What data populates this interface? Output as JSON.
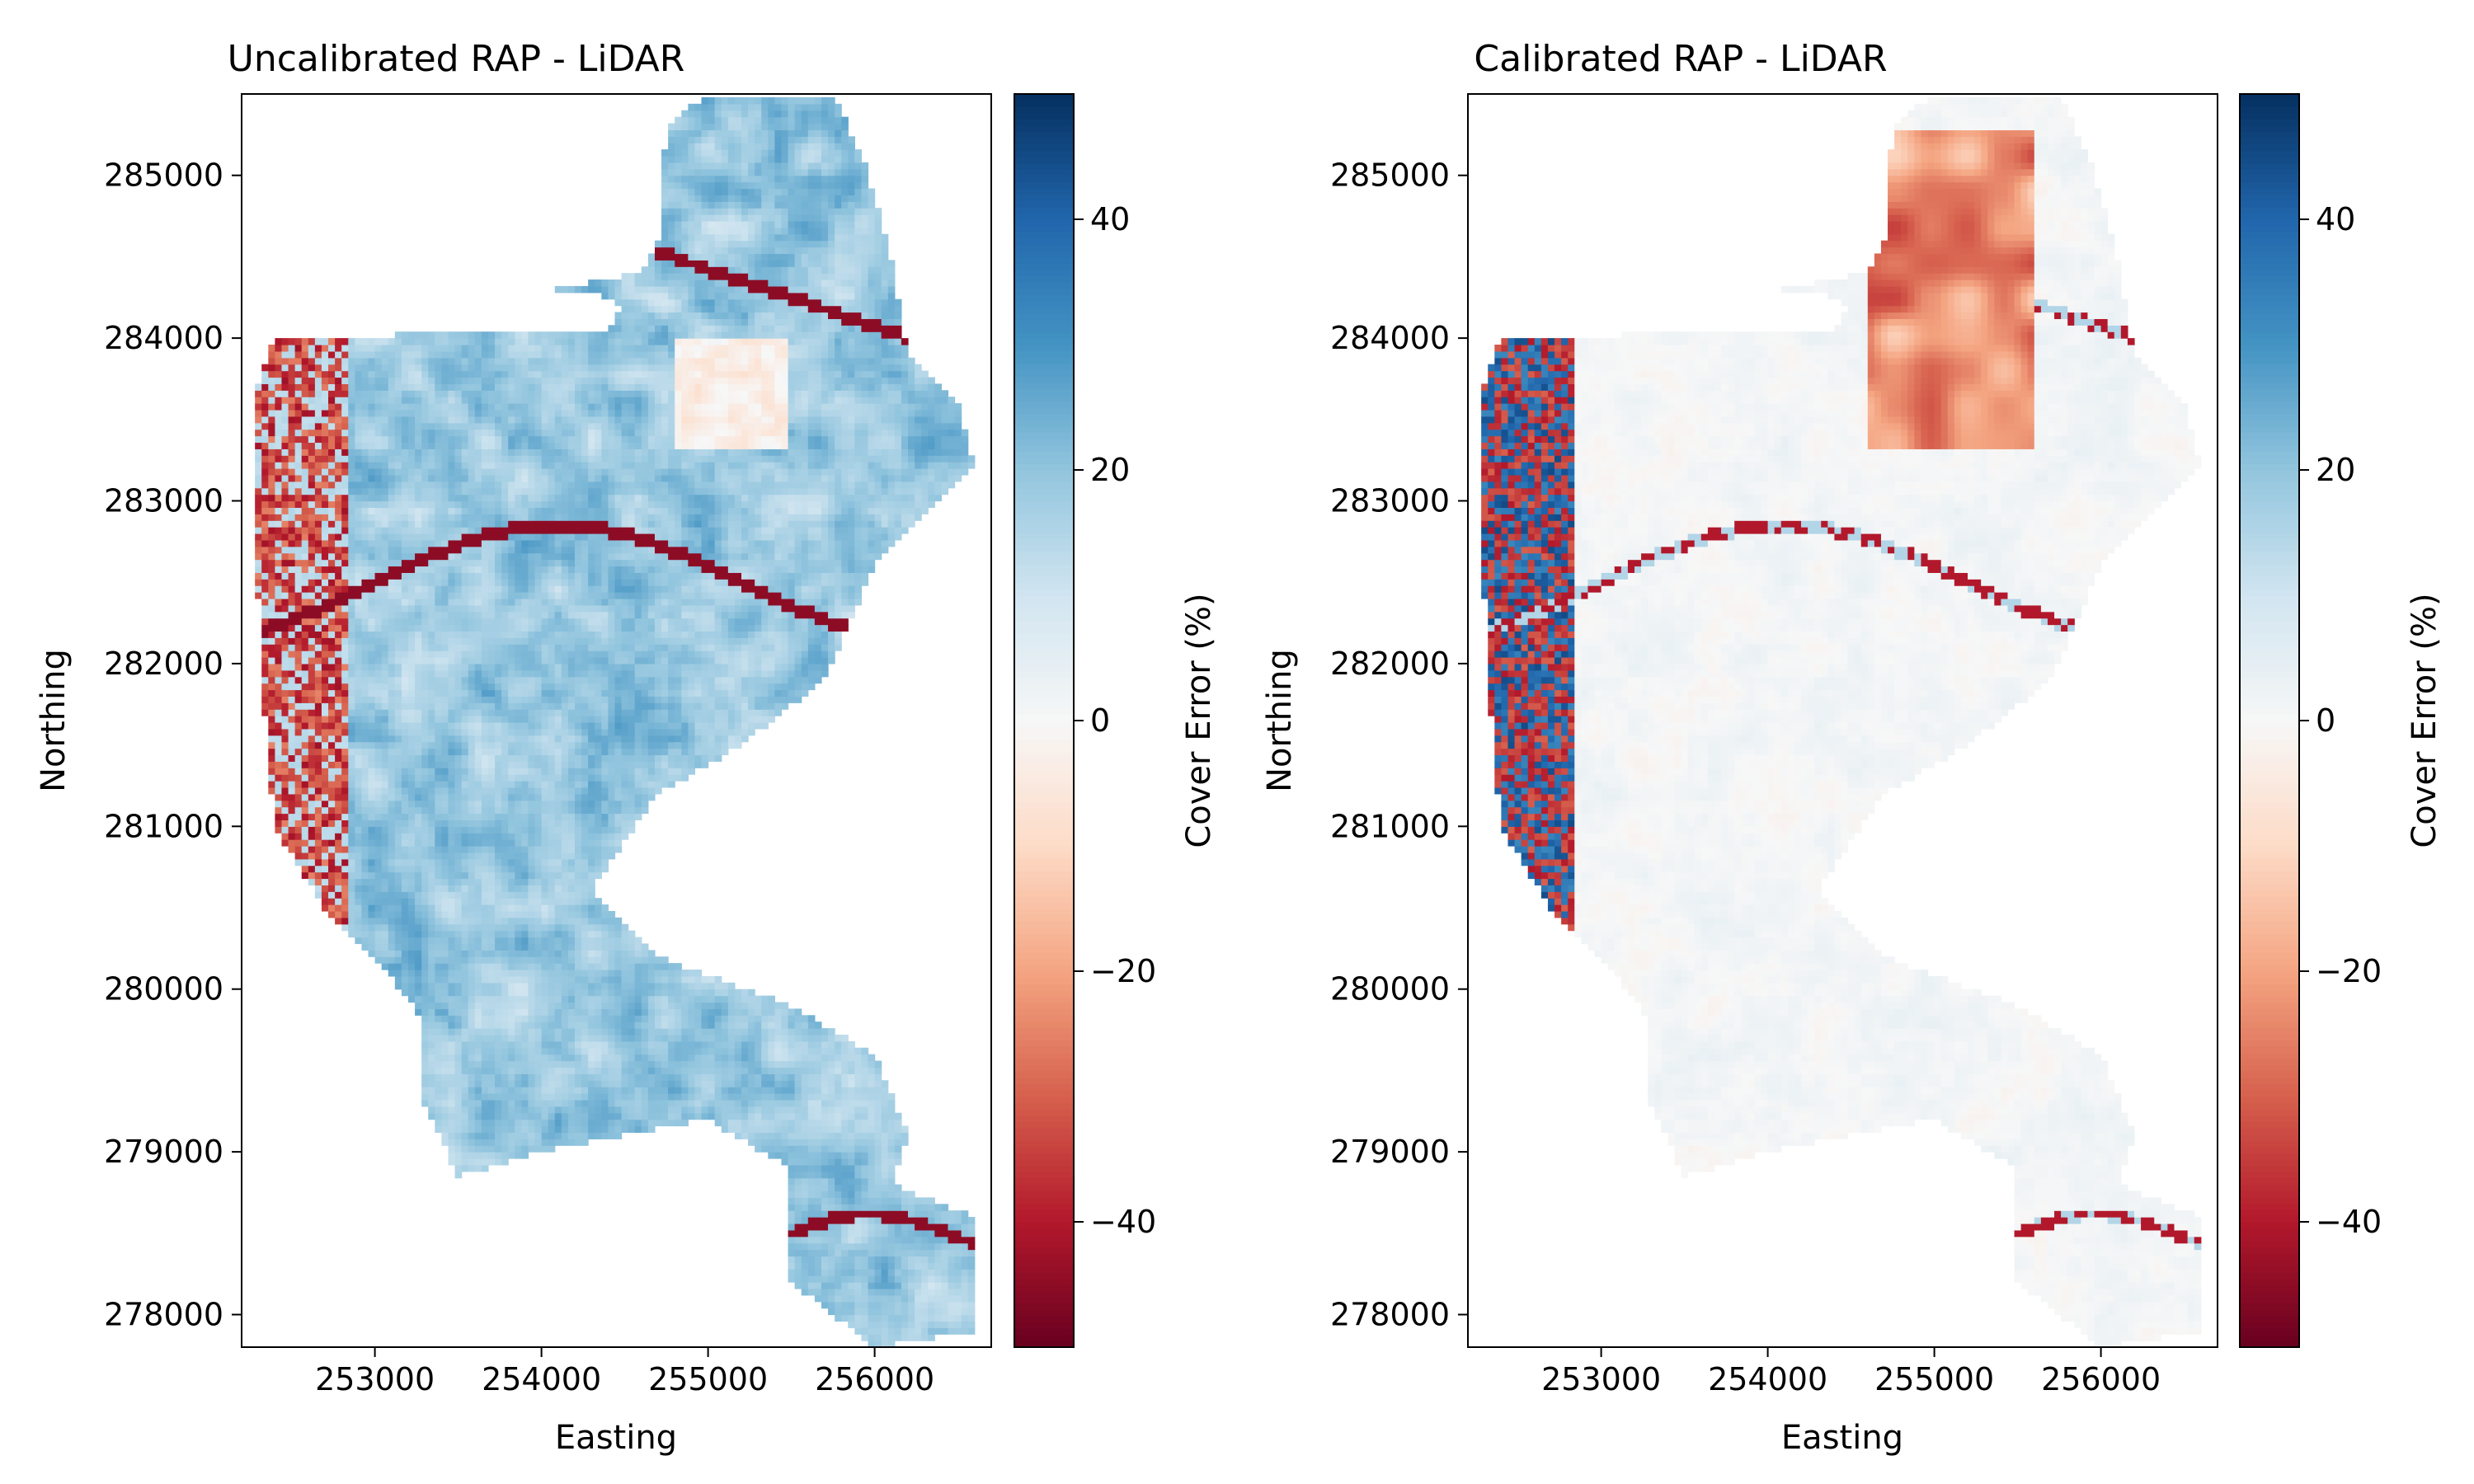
{
  "chart_data": [
    {
      "type": "heatmap",
      "title": "Uncalibrated RAP - LiDAR",
      "xlabel": "Easting",
      "ylabel": "Northing",
      "xlim": [
        252200,
        256700
      ],
      "ylim": [
        277800,
        285500
      ],
      "xticks": [
        253000,
        254000,
        255000,
        256000
      ],
      "yticks": [
        278000,
        279000,
        280000,
        281000,
        282000,
        283000,
        284000,
        285000
      ],
      "colorbar": {
        "label": "Cover Error (%)",
        "colormap": "RdBu",
        "range": [
          -50,
          50
        ],
        "ticks": [
          -40,
          -20,
          0,
          20,
          40
        ],
        "tick_labels": [
          "−40",
          "−20",
          "0",
          "20",
          "40"
        ]
      },
      "overall_tendency": "mostly positive (blue), about 10 to 25 percent; strongly negative (red) along west edge and channels"
    },
    {
      "type": "heatmap",
      "title": "Calibrated RAP - LiDAR",
      "xlabel": "Easting",
      "ylabel": "Northing",
      "xlim": [
        252200,
        256700
      ],
      "ylim": [
        277800,
        285500
      ],
      "xticks": [
        253000,
        254000,
        255000,
        256000
      ],
      "yticks": [
        278000,
        279000,
        280000,
        281000,
        282000,
        283000,
        284000,
        285000
      ],
      "colorbar": {
        "label": "Cover Error (%)",
        "colormap": "RdBu",
        "range": [
          -50,
          50
        ],
        "ticks": [
          -40,
          -20,
          0,
          20,
          40
        ],
        "tick_labels": [
          "−40",
          "−20",
          "0",
          "20",
          "40"
        ]
      },
      "overall_tendency": "mostly near zero (white); mixed red and blue along west edge; red patch in north-center"
    }
  ],
  "colors": {
    "cmap_stops": [
      "#67001f",
      "#b2182b",
      "#d6604d",
      "#f4a582",
      "#fddbc7",
      "#f7f7f7",
      "#d1e5f0",
      "#92c5de",
      "#4393c3",
      "#2166ac",
      "#053061"
    ]
  }
}
